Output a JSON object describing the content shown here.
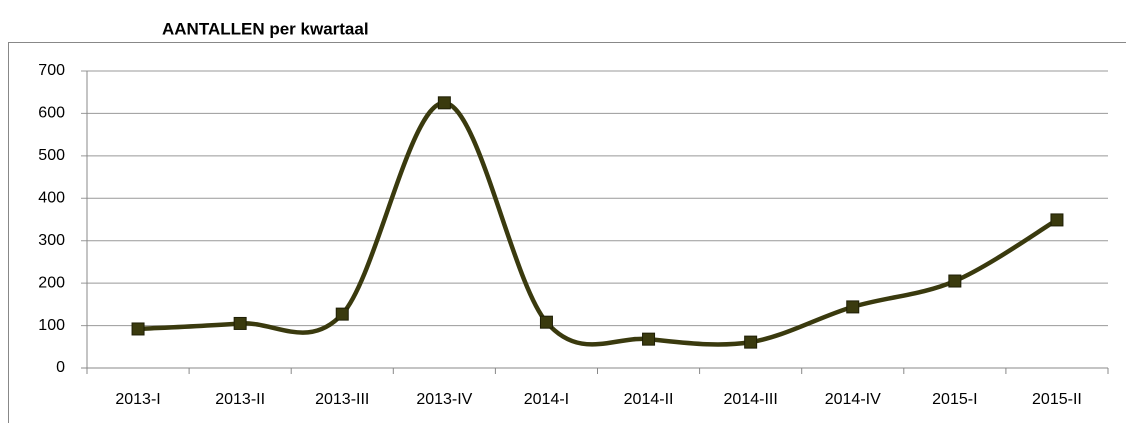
{
  "chart_data": {
    "type": "line",
    "title": "AANTALLEN per kwartaal",
    "categories": [
      "2013-I",
      "2013-II",
      "2013-III",
      "2013-IV",
      "2014-I",
      "2014-II",
      "2014-III",
      "2014-IV",
      "2015-I",
      "2015-II"
    ],
    "series": [
      {
        "name": "AANTALLEN",
        "color": "#3a3a0e",
        "values": [
          92,
          105,
          127,
          625,
          108,
          68,
          61,
          144,
          205,
          349
        ]
      }
    ],
    "ylim": [
      0,
      700
    ],
    "yticks": [
      0,
      100,
      200,
      300,
      400,
      500,
      600,
      700
    ],
    "grid": true,
    "smooth": true
  }
}
